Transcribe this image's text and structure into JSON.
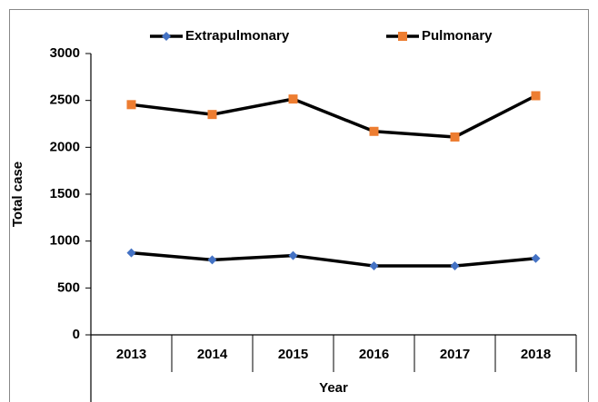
{
  "chart_data": {
    "type": "line",
    "categories": [
      "2013",
      "2014",
      "2015",
      "2016",
      "2017",
      "2018"
    ],
    "series": [
      {
        "name": "Extrapulmonary",
        "color": "#4472c4",
        "marker": "diamond",
        "values": [
          875,
          800,
          845,
          735,
          735,
          815
        ]
      },
      {
        "name": "Pulmonary",
        "color": "#ed7d31",
        "marker": "square",
        "values": [
          2455,
          2350,
          2515,
          2170,
          2110,
          2550
        ]
      }
    ],
    "line_color": "#000000",
    "xlabel": "Year",
    "ylabel": "Total case",
    "ylim": [
      0,
      3000
    ],
    "yticks": [
      0,
      500,
      1000,
      1500,
      2000,
      2500,
      3000
    ],
    "grid": false,
    "legend": "top"
  }
}
